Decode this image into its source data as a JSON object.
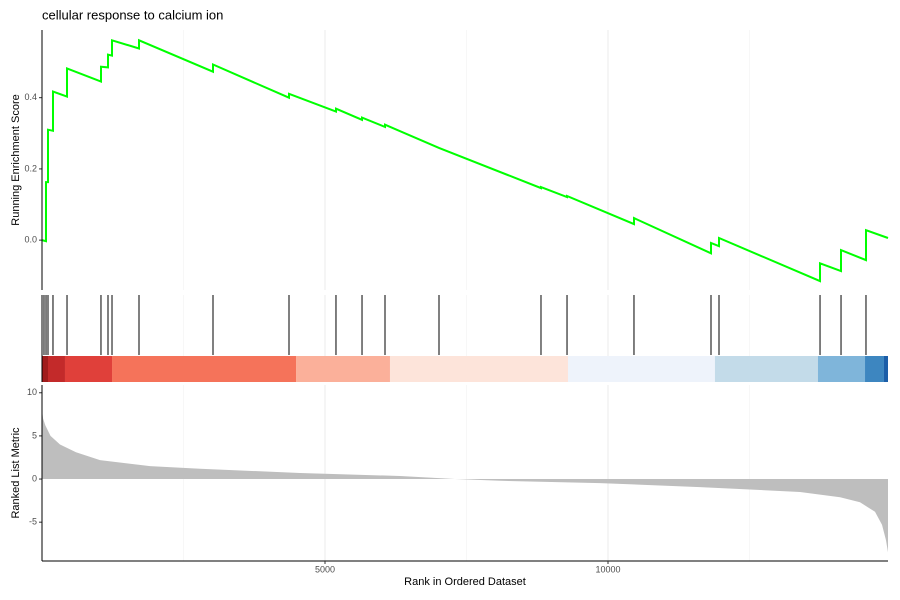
{
  "chart_data": {
    "type": "gsea",
    "title": "cellular response to calcium ion",
    "xlabel": "Rank in Ordered Dataset",
    "xlim": [
      0,
      14947
    ],
    "xticks": [
      5000,
      10000
    ],
    "x_minor_grid": [
      2500,
      7500,
      12500
    ],
    "running_score": {
      "ylabel": "Running Enrichment Score",
      "color": "#00ff00",
      "ylim": [
        -0.14,
        0.59
      ],
      "yticks": [
        {
          "value": 0,
          "label": "0.0"
        },
        {
          "value": 0.2,
          "label": "0.2"
        },
        {
          "value": 0.4,
          "label": "0.4"
        }
      ],
      "x": [
        0,
        71,
        71,
        106,
        106,
        194,
        194,
        442,
        442,
        1042,
        1042,
        1166,
        1166,
        1237,
        1237,
        1714,
        1714,
        3021,
        3021,
        4364,
        4364,
        5194,
        5194,
        5654,
        5654,
        6060,
        6060,
        7014,
        8816,
        8816,
        9276,
        9276,
        10459,
        10459,
        11820,
        11820,
        11961,
        11961,
        13746,
        13746,
        14117,
        14117,
        14558,
        14558,
        14947
      ],
      "values": [
        0.0,
        -0.003,
        0.163,
        0.163,
        0.31,
        0.307,
        0.417,
        0.403,
        0.482,
        0.445,
        0.487,
        0.485,
        0.521,
        0.518,
        0.561,
        0.538,
        0.561,
        0.473,
        0.493,
        0.4,
        0.411,
        0.361,
        0.369,
        0.338,
        0.344,
        0.318,
        0.324,
        0.259,
        0.146,
        0.149,
        0.121,
        0.124,
        0.045,
        0.062,
        -0.037,
        -0.008,
        -0.017,
        0.006,
        -0.115,
        -0.065,
        -0.087,
        -0.028,
        -0.056,
        0.028,
        0.006
      ]
    },
    "hits": [
      35,
      71,
      106,
      194,
      442,
      1042,
      1166,
      1237,
      1714,
      3021,
      4364,
      5194,
      5654,
      6060,
      7014,
      8816,
      9276,
      10459,
      11820,
      11961,
      13746,
      14117,
      14558
    ],
    "color_bands": [
      {
        "start": 0,
        "end": 106,
        "color": "#a01c1c"
      },
      {
        "start": 106,
        "end": 406,
        "color": "#c32a2a"
      },
      {
        "start": 406,
        "end": 1237,
        "color": "#e0403a"
      },
      {
        "start": 1237,
        "end": 4488,
        "color": "#f5735a"
      },
      {
        "start": 4488,
        "end": 6148,
        "color": "#fbb09a"
      },
      {
        "start": 6148,
        "end": 9293,
        "color": "#fde4da"
      },
      {
        "start": 9293,
        "end": 11890,
        "color": "#eef3fb"
      },
      {
        "start": 11890,
        "end": 13710,
        "color": "#c3dbe9"
      },
      {
        "start": 13710,
        "end": 14541,
        "color": "#7fb5da"
      },
      {
        "start": 14541,
        "end": 14876,
        "color": "#3d86c0"
      },
      {
        "start": 14876,
        "end": 14947,
        "color": "#1c5ea8"
      }
    ],
    "ranked_metric": {
      "ylabel": "Ranked List Metric",
      "color": "#bebebe",
      "ylim": [
        -9.5,
        10.9
      ],
      "yticks": [
        -5,
        0,
        5,
        10
      ],
      "x": [
        0,
        20,
        60,
        150,
        318,
        600,
        1025,
        1908,
        2792,
        4558,
        6325,
        7297,
        8093,
        9860,
        11626,
        13393,
        14100,
        14453,
        14718,
        14841,
        14911,
        14947
      ],
      "values": [
        8.0,
        7.0,
        6.2,
        5.0,
        4.0,
        3.1,
        2.2,
        1.5,
        1.2,
        0.7,
        0.35,
        0,
        -0.2,
        -0.47,
        -0.93,
        -1.5,
        -2.1,
        -2.7,
        -3.8,
        -5.3,
        -7.1,
        -8.5
      ]
    }
  }
}
